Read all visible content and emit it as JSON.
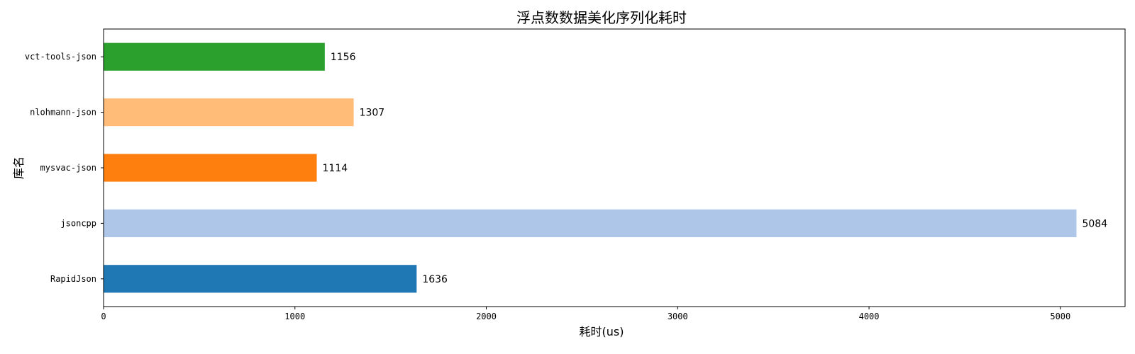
{
  "chart_data": {
    "type": "bar",
    "orientation": "horizontal",
    "title": "浮点数数据美化序列化耗时",
    "xlabel": "耗时(us)",
    "ylabel": "库名",
    "categories": [
      "RapidJson",
      "jsoncpp",
      "mysvac-json",
      "nlohmann-json",
      "vct-tools-json"
    ],
    "values": [
      1636,
      5084,
      1114,
      1307,
      1156
    ],
    "colors": [
      "#1f77b4",
      "#aec7e8",
      "#ff7f0e",
      "#ffbb78",
      "#2ca02c"
    ],
    "xlim": [
      0,
      5338
    ],
    "xticks": [
      0,
      1000,
      2000,
      3000,
      4000,
      5000
    ],
    "grid": false,
    "data_labels": true
  }
}
